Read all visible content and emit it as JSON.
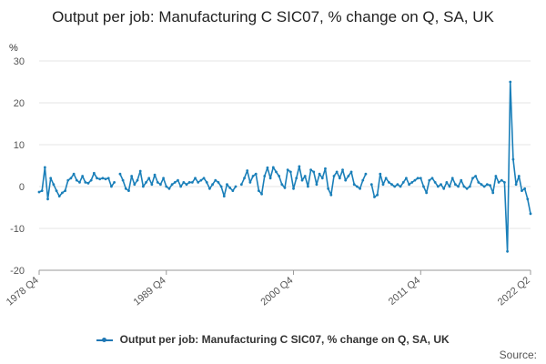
{
  "title": "Output per job: Manufacturing C SIC07, % change on Q, SA, UK",
  "source_label": "Source:",
  "colors": {
    "series": "#1a7fb9",
    "grid": "#e4e4e4",
    "axis": "#999999"
  },
  "chart_data": {
    "type": "line",
    "ylabel": "%",
    "ylim": [
      -20,
      30
    ],
    "yticks": [
      -20,
      -10,
      0,
      10,
      20,
      30
    ],
    "x_tick_labels": [
      "1978 Q4",
      "1989 Q4",
      "2000 Q4",
      "2011 Q4",
      "2022 Q2"
    ],
    "x_start": "1978 Q4",
    "x_end": "2022 Q2",
    "grid": true,
    "legend_position": "bottom",
    "series": [
      {
        "name": "Output per job: Manufacturing C SIC07, % change on Q, SA, UK",
        "values": [
          -1.3,
          -1.0,
          4.6,
          -3.0,
          2.0,
          0.5,
          -1.0,
          -2.3,
          -1.5,
          -1.0,
          1.5,
          2.0,
          3.0,
          1.5,
          1.0,
          2.5,
          1.0,
          0.8,
          1.5,
          3.2,
          2.0,
          1.8,
          2.0,
          1.8,
          2.0,
          0.0,
          1.0,
          null,
          3.0,
          1.5,
          -0.5,
          -1.0,
          2.5,
          0.5,
          1.5,
          3.7,
          0.0,
          1.0,
          2.0,
          0.5,
          2.8,
          1.0,
          0.5,
          2.0,
          0.0,
          -0.5,
          0.5,
          1.0,
          1.5,
          0.0,
          1.0,
          0.5,
          1.0,
          1.0,
          2.0,
          1.0,
          1.5,
          2.0,
          1.0,
          -0.5,
          0.5,
          1.5,
          1.0,
          0.0,
          -2.3,
          0.5,
          -0.3,
          -1.0,
          0.0,
          null,
          0.5,
          2.0,
          3.8,
          1.0,
          2.5,
          3.0,
          -1.0,
          -1.8,
          2.5,
          4.5,
          2.0,
          4.6,
          3.5,
          2.5,
          0.5,
          -0.3,
          4.0,
          3.5,
          -0.5,
          2.0,
          4.8,
          1.5,
          2.5,
          0.0,
          4.0,
          3.5,
          0.5,
          3.0,
          2.0,
          4.3,
          -0.5,
          -2.0,
          2.5,
          3.5,
          2.0,
          4.0,
          1.5,
          2.5,
          3.5,
          0.5,
          0.0,
          -0.5,
          1.5,
          3.0,
          null,
          0.5,
          -2.5,
          -2.0,
          3.0,
          0.5,
          2.0,
          1.0,
          0.5,
          0.0,
          0.5,
          0.0,
          1.0,
          2.0,
          0.5,
          1.0,
          1.5,
          2.0,
          2.0,
          0.0,
          -1.5,
          1.5,
          2.0,
          1.0,
          0.0,
          0.5,
          -0.5,
          1.0,
          0.0,
          2.0,
          0.5,
          0.0,
          1.5,
          0.0,
          -0.5,
          0.0,
          2.0,
          2.5,
          1.0,
          0.5,
          0.0,
          0.5,
          0.3,
          -1.5,
          2.5,
          1.0,
          1.5,
          1.0,
          -15.5,
          25.0,
          6.5,
          0.5,
          2.5,
          -1.0,
          -0.5,
          -3.0,
          -6.5
        ]
      }
    ]
  }
}
